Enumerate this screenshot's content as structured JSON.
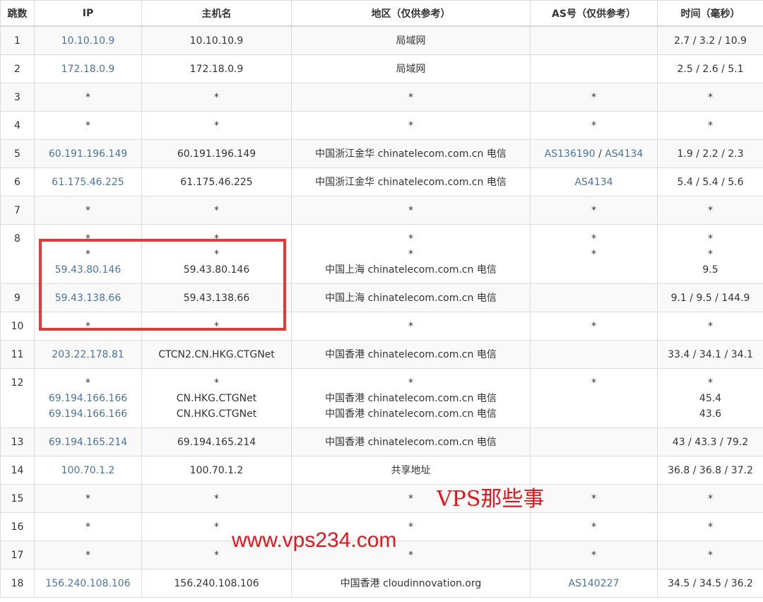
{
  "headers": [
    "跳数",
    "IP",
    "主机名",
    "地区（仅供参考）",
    "AS号（仅供参考）",
    "时间（毫秒）"
  ],
  "rows": [
    {
      "hop": "1",
      "ip": [
        "10.10.10.9"
      ],
      "host": [
        "10.10.10.9"
      ],
      "region": [
        "局域网"
      ],
      "as": [
        ""
      ],
      "time": [
        "2.7 / 3.2 / 10.9"
      ]
    },
    {
      "hop": "2",
      "ip": [
        "172.18.0.9"
      ],
      "host": [
        "172.18.0.9"
      ],
      "region": [
        "局域网"
      ],
      "as": [
        ""
      ],
      "time": [
        "2.5 / 2.6 / 5.1"
      ]
    },
    {
      "hop": "3",
      "ip": [
        "*"
      ],
      "host": [
        "*"
      ],
      "region": [
        "*"
      ],
      "as": [
        "*"
      ],
      "time": [
        "*"
      ]
    },
    {
      "hop": "4",
      "ip": [
        "*"
      ],
      "host": [
        "*"
      ],
      "region": [
        "*"
      ],
      "as": [
        "*"
      ],
      "time": [
        "*"
      ]
    },
    {
      "hop": "5",
      "ip": [
        "60.191.196.149"
      ],
      "host": [
        "60.191.196.149"
      ],
      "region": [
        "中国浙江金华 chinatelecom.com.cn 电信"
      ],
      "as": [
        "AS136190 / AS4134"
      ],
      "time": [
        "1.9 / 2.2 / 2.3"
      ]
    },
    {
      "hop": "6",
      "ip": [
        "61.175.46.225"
      ],
      "host": [
        "61.175.46.225"
      ],
      "region": [
        "中国浙江金华 chinatelecom.com.cn 电信"
      ],
      "as": [
        "AS4134"
      ],
      "time": [
        "5.4 / 5.4 / 5.6"
      ]
    },
    {
      "hop": "7",
      "ip": [
        "*"
      ],
      "host": [
        "*"
      ],
      "region": [
        "*"
      ],
      "as": [
        "*"
      ],
      "time": [
        "*"
      ]
    },
    {
      "hop": "8",
      "ip": [
        "*",
        "*",
        "59.43.80.146"
      ],
      "host": [
        "*",
        "*",
        "59.43.80.146"
      ],
      "region": [
        "*",
        "*",
        "中国上海 chinatelecom.com.cn 电信"
      ],
      "as": [
        "*",
        "*",
        ""
      ],
      "time": [
        "*",
        "*",
        "9.5"
      ]
    },
    {
      "hop": "9",
      "ip": [
        "59.43.138.66"
      ],
      "host": [
        "59.43.138.66"
      ],
      "region": [
        "中国上海 chinatelecom.com.cn 电信"
      ],
      "as": [
        ""
      ],
      "time": [
        "9.1 / 9.5 / 144.9"
      ]
    },
    {
      "hop": "10",
      "ip": [
        "*"
      ],
      "host": [
        "*"
      ],
      "region": [
        "*"
      ],
      "as": [
        "*"
      ],
      "time": [
        "*"
      ]
    },
    {
      "hop": "11",
      "ip": [
        "203.22.178.81"
      ],
      "host": [
        "CTCN2.CN.HKG.CTGNet"
      ],
      "region": [
        "中国香港 chinatelecom.com.cn 电信"
      ],
      "as": [
        ""
      ],
      "time": [
        "33.4 / 34.1 / 34.1"
      ]
    },
    {
      "hop": "12",
      "ip": [
        "*",
        "69.194.166.166",
        "69.194.166.166"
      ],
      "host": [
        "*",
        "CN.HKG.CTGNet",
        "CN.HKG.CTGNet"
      ],
      "region": [
        "*",
        "中国香港 chinatelecom.com.cn 电信",
        "中国香港 chinatelecom.com.cn 电信"
      ],
      "as": [
        "*",
        "",
        ""
      ],
      "time": [
        "*",
        "45.4",
        "43.6"
      ]
    },
    {
      "hop": "13",
      "ip": [
        "69.194.165.214"
      ],
      "host": [
        "69.194.165.214"
      ],
      "region": [
        "中国香港 chinatelecom.com.cn 电信"
      ],
      "as": [
        ""
      ],
      "time": [
        "43 / 43.3 / 79.2"
      ]
    },
    {
      "hop": "14",
      "ip": [
        "100.70.1.2"
      ],
      "host": [
        "100.70.1.2"
      ],
      "region": [
        "共享地址"
      ],
      "as": [
        ""
      ],
      "time": [
        "36.8 / 36.8 / 37.2"
      ]
    },
    {
      "hop": "15",
      "ip": [
        "*"
      ],
      "host": [
        "*"
      ],
      "region": [
        "*"
      ],
      "as": [
        "*"
      ],
      "time": [
        "*"
      ]
    },
    {
      "hop": "16",
      "ip": [
        "*"
      ],
      "host": [
        "*"
      ],
      "region": [
        "*"
      ],
      "as": [
        "*"
      ],
      "time": [
        "*"
      ]
    },
    {
      "hop": "17",
      "ip": [
        "*"
      ],
      "host": [
        "*"
      ],
      "region": [
        "*"
      ],
      "as": [
        "*"
      ],
      "time": [
        "*"
      ]
    },
    {
      "hop": "18",
      "ip": [
        "156.240.108.106"
      ],
      "host": [
        "156.240.108.106"
      ],
      "region": [
        "中国香港 cloudinnovation.org"
      ],
      "as": [
        "AS140227"
      ],
      "time": [
        "34.5 / 34.5 / 36.2"
      ]
    }
  ],
  "watermark": {
    "line1": "VPS那些事",
    "line2": "www.vps234.com"
  },
  "colors": {
    "link": "#4a74a0",
    "highlight_box": "#e53935",
    "watermark": "#e8141b"
  }
}
